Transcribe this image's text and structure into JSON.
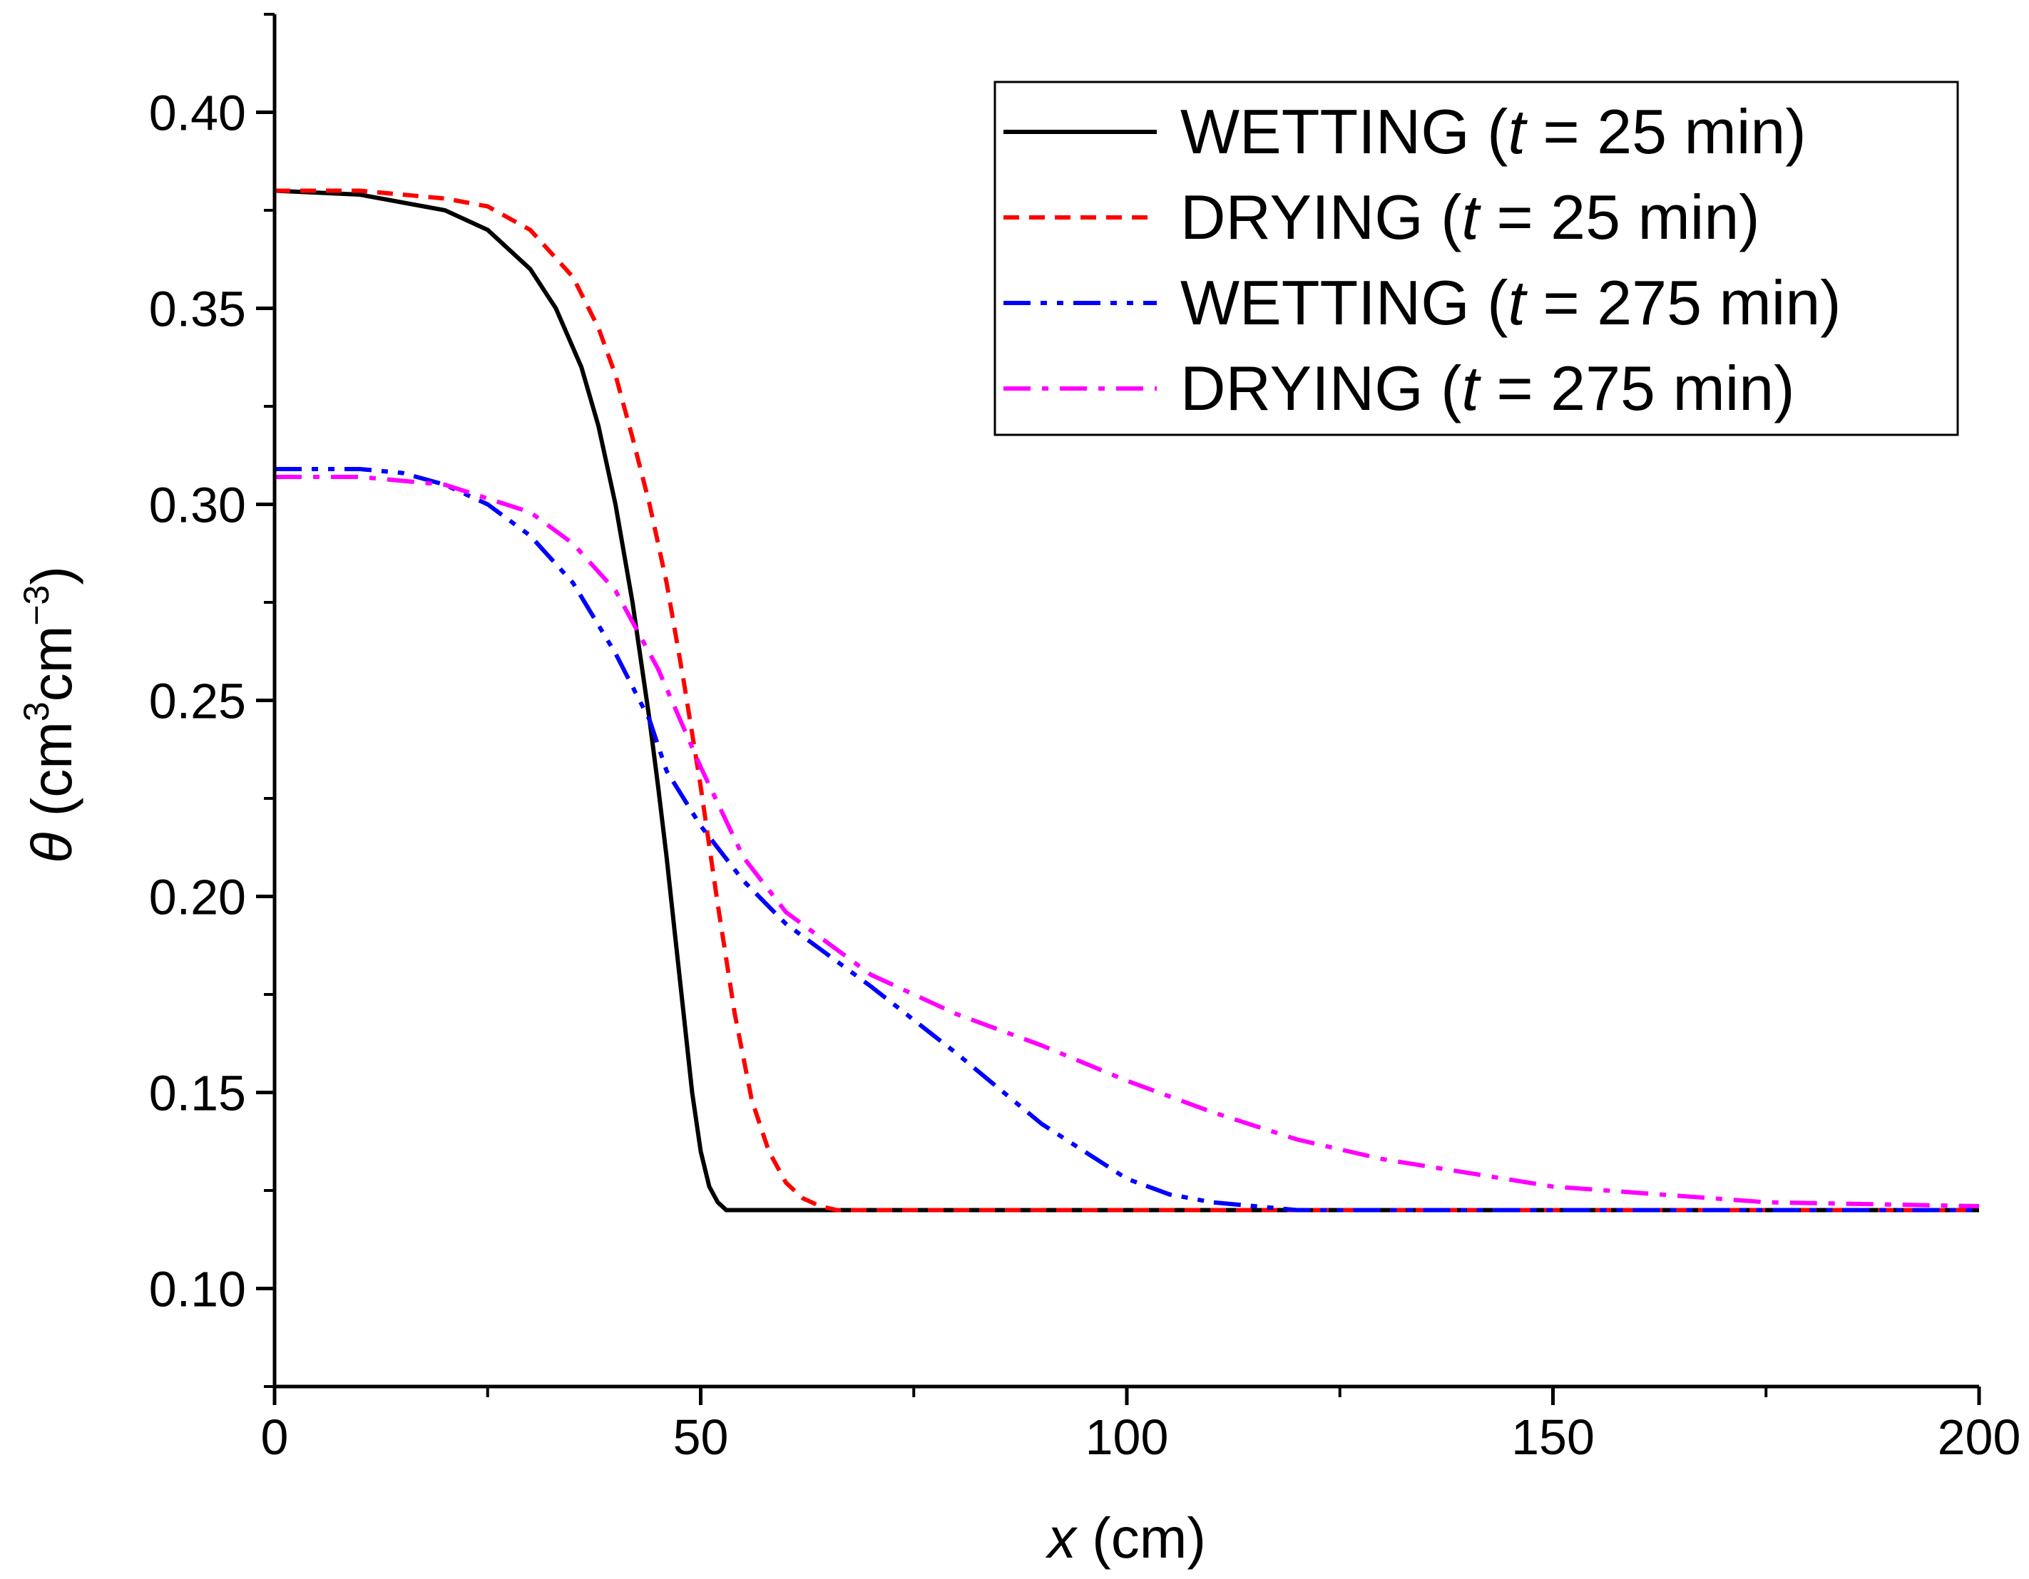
{
  "chart_data": {
    "type": "line",
    "title": "",
    "xlabel": {
      "var": "x",
      "unit": " (cm)"
    },
    "ylabel": {
      "var": "θ",
      "pre": " (cm",
      "sup1": "3",
      "mid": "cm",
      "sup2": "−3",
      "post": ")"
    },
    "xlim": [
      0,
      200
    ],
    "ylim": [
      0.075,
      0.425
    ],
    "xticks": [
      0,
      50,
      100,
      150,
      200
    ],
    "xtick_labels": [
      "0",
      "50",
      "100",
      "150",
      "200"
    ],
    "yticks": [
      0.1,
      0.15,
      0.2,
      0.25,
      0.3,
      0.35,
      0.4
    ],
    "ytick_labels": [
      "0.10",
      "0.15",
      "0.20",
      "0.25",
      "0.30",
      "0.35",
      "0.40"
    ],
    "grid": false,
    "legend_position": "top-right",
    "series": [
      {
        "name": "wetting-25",
        "legend": {
          "pre": "WETTING (",
          "var": "t",
          "post": " = 25 min)"
        },
        "color": "#000000",
        "style": "solid",
        "x": [
          0,
          10,
          20,
          25,
          30,
          33,
          36,
          38,
          40,
          42,
          44,
          45,
          46,
          47,
          48,
          49,
          50,
          51,
          52,
          53,
          54,
          55,
          60,
          80,
          100,
          150,
          200
        ],
        "y": [
          0.38,
          0.379,
          0.375,
          0.37,
          0.36,
          0.35,
          0.335,
          0.32,
          0.3,
          0.275,
          0.245,
          0.228,
          0.21,
          0.19,
          0.17,
          0.15,
          0.135,
          0.126,
          0.122,
          0.12,
          0.12,
          0.12,
          0.12,
          0.12,
          0.12,
          0.12,
          0.12
        ]
      },
      {
        "name": "drying-25",
        "legend": {
          "pre": "DRYING (",
          "var": "t",
          "post": " = 25 min)"
        },
        "color": "#ff0000",
        "style": "dash",
        "x": [
          0,
          10,
          20,
          25,
          30,
          35,
          38,
          40,
          42,
          44,
          46,
          48,
          50,
          52,
          54,
          56,
          58,
          60,
          62,
          64,
          66,
          70,
          80,
          100,
          150,
          200
        ],
        "y": [
          0.38,
          0.38,
          0.378,
          0.376,
          0.37,
          0.358,
          0.345,
          0.333,
          0.317,
          0.3,
          0.28,
          0.255,
          0.228,
          0.198,
          0.17,
          0.148,
          0.135,
          0.127,
          0.123,
          0.121,
          0.12,
          0.12,
          0.12,
          0.12,
          0.12,
          0.12
        ]
      },
      {
        "name": "wetting-275",
        "legend": {
          "pre": "WETTING (",
          "var": "t",
          "post": " = 275 min)"
        },
        "color": "#0000ff",
        "style": "dashdotdot",
        "x": [
          0,
          5,
          10,
          15,
          20,
          25,
          30,
          35,
          40,
          44,
          46,
          50,
          55,
          60,
          70,
          80,
          90,
          100,
          105,
          110,
          115,
          120,
          130,
          150,
          200
        ],
        "y": [
          0.309,
          0.309,
          0.309,
          0.308,
          0.305,
          0.3,
          0.292,
          0.28,
          0.262,
          0.245,
          0.232,
          0.218,
          0.204,
          0.193,
          0.177,
          0.16,
          0.142,
          0.128,
          0.124,
          0.122,
          0.121,
          0.12,
          0.12,
          0.12,
          0.12
        ]
      },
      {
        "name": "drying-275",
        "legend": {
          "pre": "DRYING (",
          "var": "t",
          "post": " = 275 min)"
        },
        "color": "#ff00ff",
        "style": "dashdot",
        "x": [
          0,
          10,
          20,
          30,
          35,
          40,
          45,
          50,
          55,
          60,
          70,
          80,
          90,
          100,
          110,
          120,
          130,
          150,
          175,
          200
        ],
        "y": [
          0.307,
          0.307,
          0.305,
          0.298,
          0.29,
          0.278,
          0.258,
          0.233,
          0.21,
          0.196,
          0.18,
          0.17,
          0.162,
          0.153,
          0.145,
          0.138,
          0.133,
          0.126,
          0.122,
          0.121
        ]
      }
    ]
  }
}
